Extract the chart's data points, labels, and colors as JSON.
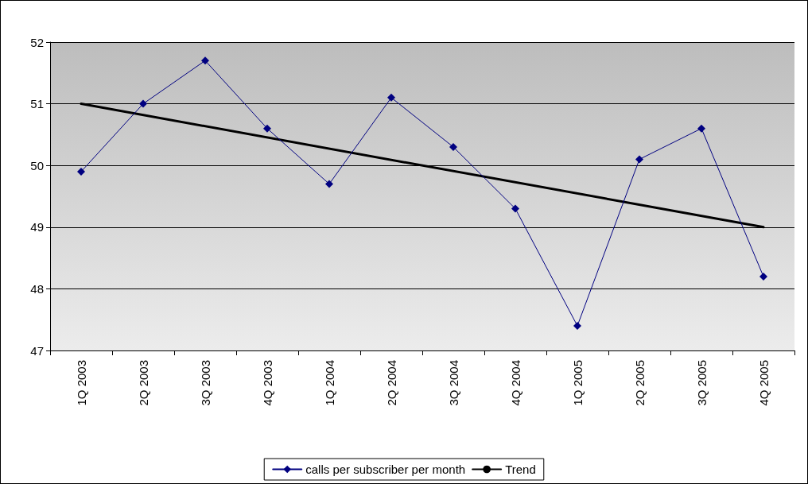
{
  "chart_data": {
    "type": "line",
    "categories": [
      "1Q 2003",
      "2Q 2003",
      "3Q 2003",
      "4Q 2003",
      "1Q 2004",
      "2Q 2004",
      "3Q 2004",
      "4Q 2004",
      "1Q 2005",
      "2Q 2005",
      "3Q 2005",
      "4Q 2005"
    ],
    "series": [
      {
        "name": "calls per subscriber per month",
        "color": "#000080",
        "marker": "diamond",
        "values": [
          49.9,
          51.0,
          51.7,
          50.6,
          49.7,
          51.1,
          50.3,
          49.3,
          47.4,
          50.1,
          50.6,
          48.2
        ]
      },
      {
        "name": "Trend",
        "type": "line",
        "color": "#000000",
        "marker": "none",
        "x": [
          "1Q 2003",
          "4Q 2005"
        ],
        "values": [
          51.0,
          49.0
        ]
      }
    ],
    "ylim": [
      47,
      52
    ],
    "yticks": [
      47,
      48,
      49,
      50,
      51,
      52
    ],
    "grid": "y",
    "legend": "bottom",
    "line_style": "solid"
  }
}
